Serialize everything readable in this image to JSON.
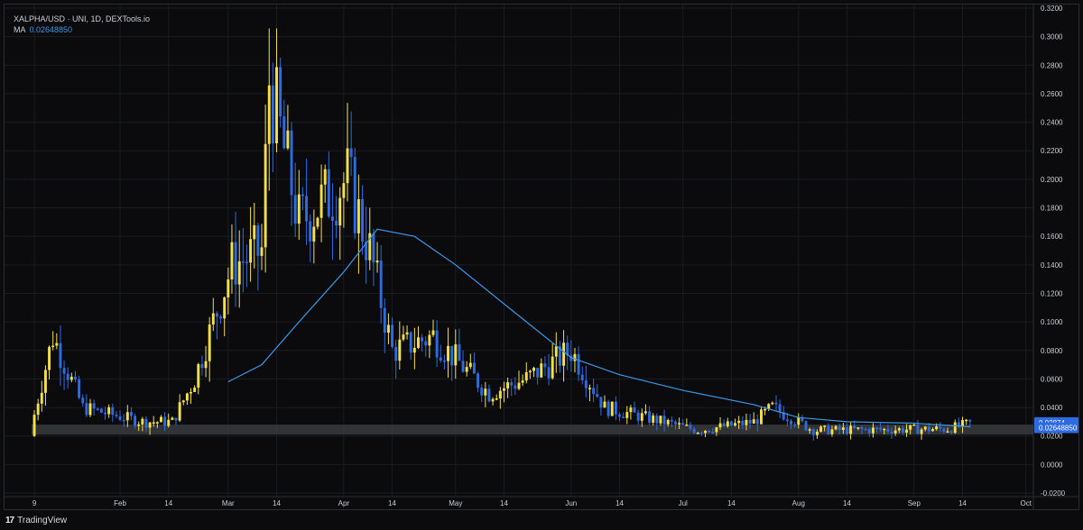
{
  "header": {
    "symbol_line": "XALPHA/USD · UNI, 1D, DEXTools.io",
    "ma_label": "MA",
    "ma_value": "0.02648850"
  },
  "footer": {
    "brand": "TradingView",
    "brand_mark": "17"
  },
  "colors": {
    "up": "#f5e04a",
    "down": "#2f6be0",
    "ma": "#3b97e8",
    "grid": "#1a1c21",
    "band": "#3a3b40",
    "axis_text": "#c9ccd3",
    "tag_blue": "#2f6be0",
    "tag_text": "#ffffff"
  },
  "chart_data": {
    "type": "candlestick",
    "title": "XALPHA/USD · UNI, 1D, DEXTools.io",
    "x_axis": {
      "start": "2024-01-01",
      "end": "2024-10-03",
      "ticks": [
        {
          "date": "2024-01-09",
          "label": "9"
        },
        {
          "date": "2024-02-01",
          "label": "Feb"
        },
        {
          "date": "2024-02-14",
          "label": "14"
        },
        {
          "date": "2024-03-01",
          "label": "Mar"
        },
        {
          "date": "2024-03-14",
          "label": "14"
        },
        {
          "date": "2024-04-01",
          "label": "Apr"
        },
        {
          "date": "2024-04-14",
          "label": "14"
        },
        {
          "date": "2024-05-01",
          "label": "May"
        },
        {
          "date": "2024-05-14",
          "label": "14"
        },
        {
          "date": "2024-06-01",
          "label": "Jun"
        },
        {
          "date": "2024-06-14",
          "label": "14"
        },
        {
          "date": "2024-07-01",
          "label": "Jul"
        },
        {
          "date": "2024-07-14",
          "label": "14"
        },
        {
          "date": "2024-08-01",
          "label": "Aug"
        },
        {
          "date": "2024-08-14",
          "label": "14"
        },
        {
          "date": "2024-09-01",
          "label": "Sep"
        },
        {
          "date": "2024-09-14",
          "label": "14"
        },
        {
          "date": "2024-10-01",
          "label": "Oct"
        }
      ]
    },
    "y_axis": {
      "range": [
        -0.0225,
        0.3225
      ],
      "ticks": [
        "0.3200",
        "0.3000",
        "0.2800",
        "0.2600",
        "0.2400",
        "0.2200",
        "0.2000",
        "0.1800",
        "0.1600",
        "0.1400",
        "0.1200",
        "0.1000",
        "0.0800",
        "0.0600",
        "0.0400",
        "0.0200",
        "0.0000",
        "-0.0200"
      ]
    },
    "price_tags": [
      {
        "label": "0.02874",
        "value": 0.02874
      },
      {
        "label": "0.02648850",
        "value": 0.0264885
      }
    ],
    "band": {
      "from": 0.021,
      "to": 0.028
    },
    "key_points": [
      {
        "date": "2024-01-09",
        "close": 0.035
      },
      {
        "date": "2024-01-14",
        "close": 0.09
      },
      {
        "date": "2024-01-22",
        "close": 0.04
      },
      {
        "date": "2024-02-07",
        "close": 0.03
      },
      {
        "date": "2024-02-15",
        "close": 0.03
      },
      {
        "date": "2024-02-21",
        "close": 0.06
      },
      {
        "date": "2024-03-02",
        "close": 0.14
      },
      {
        "date": "2024-03-10",
        "close": 0.15
      },
      {
        "date": "2024-03-12",
        "close": 0.27
      },
      {
        "date": "2024-03-20",
        "close": 0.17
      },
      {
        "date": "2024-04-02",
        "close": 0.2
      },
      {
        "date": "2024-04-08",
        "close": 0.15
      },
      {
        "date": "2024-04-14",
        "close": 0.08
      },
      {
        "date": "2024-04-25",
        "close": 0.09
      },
      {
        "date": "2024-05-10",
        "close": 0.05
      },
      {
        "date": "2024-05-20",
        "close": 0.06
      },
      {
        "date": "2024-06-01",
        "close": 0.08
      },
      {
        "date": "2024-06-10",
        "close": 0.04
      },
      {
        "date": "2024-07-05",
        "close": 0.024
      },
      {
        "date": "2024-07-20",
        "close": 0.03
      },
      {
        "date": "2024-07-25",
        "close": 0.04
      },
      {
        "date": "2024-08-05",
        "close": 0.024
      },
      {
        "date": "2024-09-10",
        "close": 0.025
      },
      {
        "date": "2024-09-16",
        "close": 0.02874
      }
    ],
    "ma_series": [
      {
        "date": "2024-03-01",
        "value": 0.058
      },
      {
        "date": "2024-03-10",
        "value": 0.07
      },
      {
        "date": "2024-03-20",
        "value": 0.1
      },
      {
        "date": "2024-04-01",
        "value": 0.135
      },
      {
        "date": "2024-04-10",
        "value": 0.165
      },
      {
        "date": "2024-04-20",
        "value": 0.16
      },
      {
        "date": "2024-05-01",
        "value": 0.14
      },
      {
        "date": "2024-05-20",
        "value": 0.1
      },
      {
        "date": "2024-06-01",
        "value": 0.075
      },
      {
        "date": "2024-06-14",
        "value": 0.063
      },
      {
        "date": "2024-07-01",
        "value": 0.052
      },
      {
        "date": "2024-07-20",
        "value": 0.042
      },
      {
        "date": "2024-08-01",
        "value": 0.033
      },
      {
        "date": "2024-08-14",
        "value": 0.03
      },
      {
        "date": "2024-09-01",
        "value": 0.029
      },
      {
        "date": "2024-09-16",
        "value": 0.0264885
      }
    ]
  }
}
